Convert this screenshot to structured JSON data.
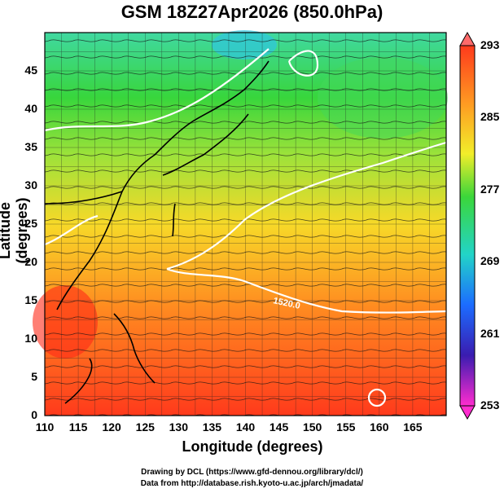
{
  "title": "GSM 18Z27Apr2026 (850.0hPa)",
  "axes": {
    "xlabel": "Longitude (degrees)",
    "ylabel": "Latitude  (degrees)",
    "xticks": [
      "110",
      "115",
      "120",
      "125",
      "130",
      "135",
      "140",
      "145",
      "150",
      "155",
      "160",
      "165"
    ],
    "yticks": [
      "0",
      "5",
      "10",
      "15",
      "20",
      "25",
      "30",
      "35",
      "40",
      "45"
    ]
  },
  "colorbar": {
    "ticks": [
      "293",
      "285",
      "277",
      "269",
      "261",
      "253"
    ]
  },
  "contour_label": "1520.0",
  "credits": {
    "line1": "Drawing by DCL (https://www.gfd-dennou.org/library/dcl/)",
    "line2": "Data from http://database.rish.kyoto-u.ac.jp/arch/jmadata/"
  },
  "colors": {
    "warm": "#ff3a1c",
    "orange": "#ff9a22",
    "yellow": "#f2ee2a",
    "green": "#3bd63a",
    "cyan": "#22d4c8",
    "blue": "#1c6cff",
    "purple": "#8b2cff",
    "magenta": "#ff2ccf"
  }
}
